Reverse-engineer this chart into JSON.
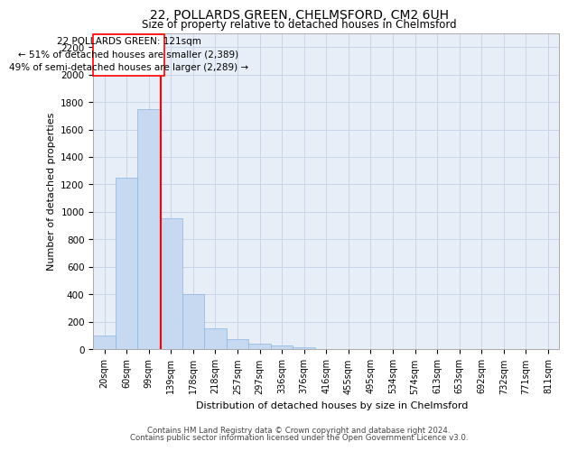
{
  "title_line1": "22, POLLARDS GREEN, CHELMSFORD, CM2 6UH",
  "title_line2": "Size of property relative to detached houses in Chelmsford",
  "xlabel": "Distribution of detached houses by size in Chelmsford",
  "ylabel": "Number of detached properties",
  "bins": [
    "20sqm",
    "60sqm",
    "99sqm",
    "139sqm",
    "178sqm",
    "218sqm",
    "257sqm",
    "297sqm",
    "336sqm",
    "376sqm",
    "416sqm",
    "455sqm",
    "495sqm",
    "534sqm",
    "574sqm",
    "613sqm",
    "653sqm",
    "692sqm",
    "732sqm",
    "771sqm",
    "811sqm"
  ],
  "values": [
    100,
    1250,
    1750,
    950,
    400,
    150,
    75,
    40,
    25,
    15,
    0,
    0,
    0,
    0,
    0,
    0,
    0,
    0,
    0,
    0,
    0
  ],
  "bar_color": "#c6d9f0",
  "bar_edge_color": "#8db4e2",
  "annotation_line1": "22 POLLARDS GREEN: 121sqm",
  "annotation_line2": "← 51% of detached houses are smaller (2,389)",
  "annotation_line3": "49% of semi-detached houses are larger (2,289) →",
  "ylim": [
    0,
    2300
  ],
  "yticks": [
    0,
    200,
    400,
    600,
    800,
    1000,
    1200,
    1400,
    1600,
    1800,
    2000,
    2200
  ],
  "footer_line1": "Contains HM Land Registry data © Crown copyright and database right 2024.",
  "footer_line2": "Contains public sector information licensed under the Open Government Licence v3.0.",
  "bg_color": "#ffffff",
  "plot_bg_color": "#e8eef8",
  "grid_color": "#c8d4e8"
}
